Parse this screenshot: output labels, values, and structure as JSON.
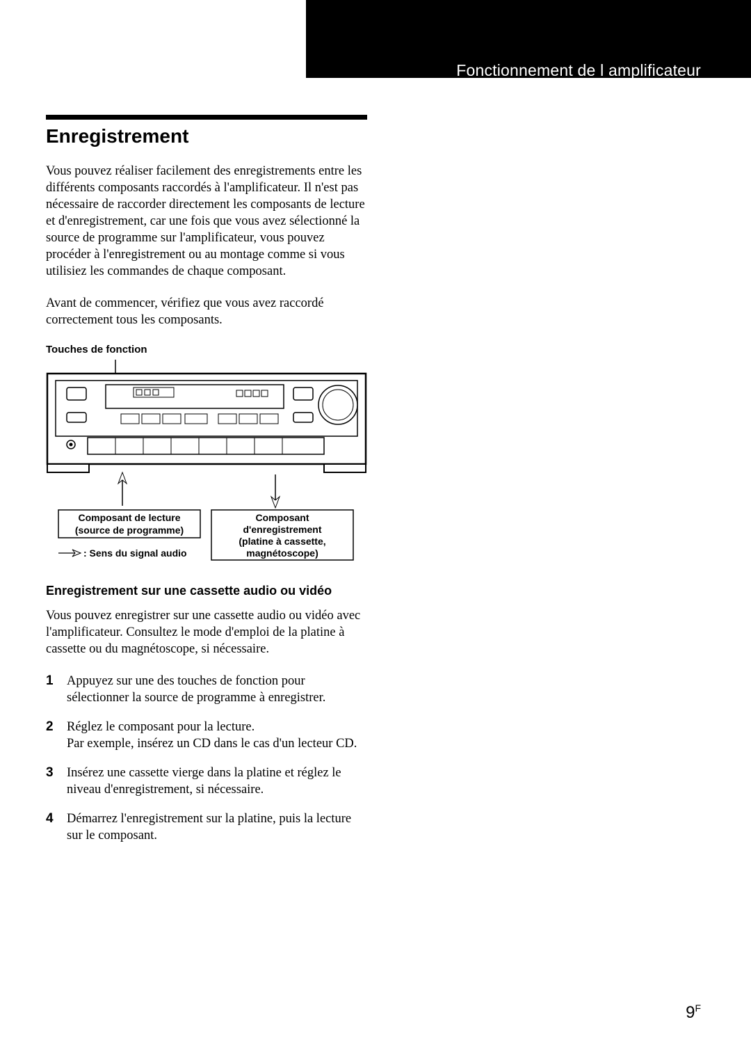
{
  "header": {
    "section_label": "Fonctionnement de l amplificateur"
  },
  "title": "Enregistrement",
  "para1": "Vous pouvez réaliser facilement des enregistrements entre les différents composants raccordés à l'amplificateur. Il n'est pas nécessaire de raccorder directement les composants de lecture et d'enregistrement, car une fois que vous avez sélectionné la source de programme sur l'amplificateur, vous pouvez procéder à l'enregistrement ou au montage comme si vous utilisiez les commandes de chaque composant.",
  "para2": "Avant de commencer, vérifiez que vous avez raccordé correctement tous les composants.",
  "figure": {
    "caption": "Touches de fonction",
    "box_left_line1": "Composant de lecture",
    "box_left_line2": "(source de programme)",
    "box_right_line1": "Composant",
    "box_right_line2": "d'enregistrement",
    "box_right_line3": "(platine à cassette,",
    "box_right_line4": "magnétoscope)",
    "signal_label": ": Sens du signal audio",
    "colors": {
      "stroke": "#000000",
      "fill": "#ffffff",
      "light_fill": "#ffffff"
    },
    "stroke_width_outer": 2,
    "stroke_width_inner": 1
  },
  "subheading": "Enregistrement sur une cassette audio ou vidéo",
  "para3": "Vous pouvez enregistrer sur une cassette audio ou vidéo avec l'amplificateur. Consultez le mode d'emploi de la platine à cassette ou du magnétoscope, si nécessaire.",
  "steps": [
    {
      "n": "1",
      "t": "Appuyez sur une des touches de fonction pour sélectionner la source de programme à enregistrer."
    },
    {
      "n": "2",
      "t": "Réglez le composant pour la lecture.\nPar exemple, insérez un CD dans le cas d'un lecteur CD."
    },
    {
      "n": "3",
      "t": "Insérez une cassette vierge dans la platine et réglez le niveau d'enregistrement, si nécessaire."
    },
    {
      "n": "4",
      "t": "Démarrez l'enregistrement sur la platine, puis la lecture sur le composant."
    }
  ],
  "page_number": "9",
  "page_suffix": "F"
}
